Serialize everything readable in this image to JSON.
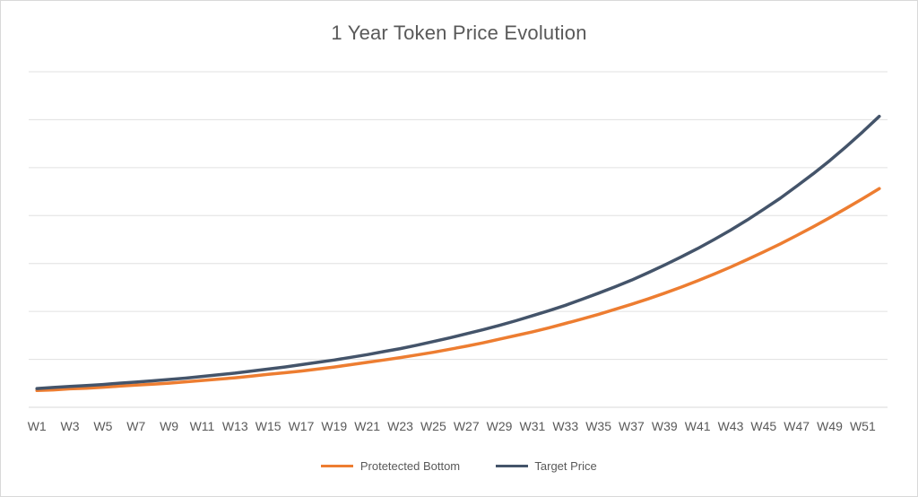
{
  "chart_data": {
    "type": "line",
    "title": "1 Year Token Price Evolution",
    "xlabel": "",
    "ylabel": "",
    "ylim": [
      0,
      1
    ],
    "grid": true,
    "legend_position": "bottom",
    "x_tick_labels": [
      "W1",
      "W3",
      "W5",
      "W7",
      "W9",
      "W11",
      "W13",
      "W15",
      "W17",
      "W19",
      "W21",
      "W23",
      "W25",
      "W27",
      "W29",
      "W31",
      "W33",
      "W35",
      "W37",
      "W39",
      "W41",
      "W43",
      "W45",
      "W47",
      "W49",
      "W51"
    ],
    "x": [
      "W1",
      "W2",
      "W3",
      "W4",
      "W5",
      "W6",
      "W7",
      "W8",
      "W9",
      "W10",
      "W11",
      "W12",
      "W13",
      "W14",
      "W15",
      "W16",
      "W17",
      "W18",
      "W19",
      "W20",
      "W21",
      "W22",
      "W23",
      "W24",
      "W25",
      "W26",
      "W27",
      "W28",
      "W29",
      "W30",
      "W31",
      "W32",
      "W33",
      "W34",
      "W35",
      "W36",
      "W37",
      "W38",
      "W39",
      "W40",
      "W41",
      "W42",
      "W43",
      "W44",
      "W45",
      "W46",
      "W47",
      "W48",
      "W49",
      "W50",
      "W51",
      "W52"
    ],
    "series": [
      {
        "name": "Protetected Bottom",
        "color": "#ED7D31",
        "values": [
          0.05,
          0.052,
          0.055,
          0.057,
          0.06,
          0.063,
          0.066,
          0.069,
          0.072,
          0.076,
          0.08,
          0.084,
          0.088,
          0.093,
          0.098,
          0.103,
          0.108,
          0.114,
          0.12,
          0.127,
          0.134,
          0.141,
          0.148,
          0.156,
          0.164,
          0.173,
          0.182,
          0.192,
          0.203,
          0.214,
          0.225,
          0.237,
          0.25,
          0.263,
          0.277,
          0.292,
          0.307,
          0.323,
          0.34,
          0.358,
          0.377,
          0.397,
          0.418,
          0.44,
          0.463,
          0.487,
          0.512,
          0.538,
          0.565,
          0.593,
          0.622,
          0.652
        ]
      },
      {
        "name": "Target Price",
        "color": "#44546A",
        "values": [
          0.056,
          0.059,
          0.062,
          0.065,
          0.068,
          0.072,
          0.075,
          0.079,
          0.083,
          0.087,
          0.092,
          0.097,
          0.102,
          0.108,
          0.114,
          0.12,
          0.127,
          0.134,
          0.141,
          0.149,
          0.157,
          0.166,
          0.175,
          0.185,
          0.196,
          0.207,
          0.219,
          0.231,
          0.244,
          0.258,
          0.273,
          0.288,
          0.304,
          0.322,
          0.34,
          0.359,
          0.379,
          0.401,
          0.424,
          0.448,
          0.473,
          0.5,
          0.528,
          0.558,
          0.59,
          0.623,
          0.659,
          0.696,
          0.735,
          0.777,
          0.821,
          0.867
        ]
      }
    ]
  }
}
